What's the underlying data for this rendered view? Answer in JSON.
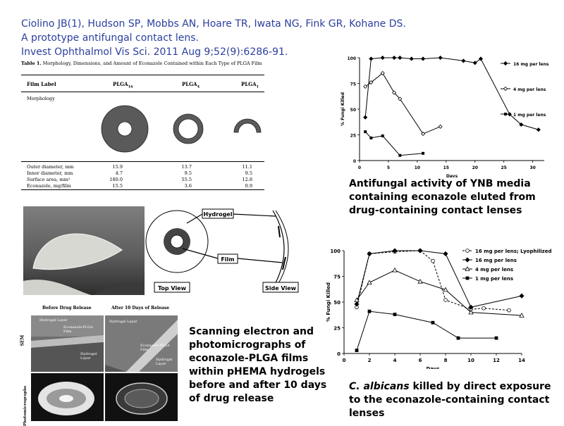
{
  "citation": {
    "authors": "Ciolino JB(1), Hudson SP, Mobbs AN, Hoare TR, Iwata NG, Fink GR, Kohane DS.",
    "title": "A prototype antifungal contact lens.",
    "journal": "Invest Ophthalmol Vis Sci. 2011 Aug 9;52(9):6286-91."
  },
  "table": {
    "caption_label": "Table 1.",
    "caption_text": "Morphology, Dimensions, and Amount of Econazole Contained within Each Type of PLGA Film",
    "col_film_label": "Film Label",
    "col_plga16": "PLGA16",
    "col_plga4": "PLGA4",
    "col_plga1": "PLGA1",
    "row_morphology": "Morphology",
    "rows": [
      {
        "label": "Outer diameter, mm",
        "v": [
          "15.9",
          "13.7",
          "11.1"
        ]
      },
      {
        "label": "Inner diameter, mm",
        "v": [
          "4.7",
          "9.5",
          "9.5"
        ]
      },
      {
        "label": "Surface area, mm²",
        "v": [
          "180.0",
          "55.5",
          "12.8"
        ]
      },
      {
        "label": "Econazole, mg/film",
        "v": [
          "15.5",
          "3.6",
          "0.9"
        ]
      }
    ]
  },
  "chart_top_caption": "Antifungal activity of YNB media containing econazole eluted from drug-containing contact lenses",
  "chart_bottom_caption_italic": "C. albicans",
  "chart_bottom_caption_rest": " killed by direct exposure to the econazole-containing contact lenses",
  "diagram": {
    "hydrogel_label": "Hydrogel",
    "film_label": "Film",
    "top_view_label": "Top View",
    "side_view_label": "Side View"
  },
  "sem": {
    "before_label": "Before Drug Release",
    "after_label": "After 10 Days of Release",
    "row_sem": "SEM",
    "row_photo": "Photomicrographs",
    "inner_hydrogel_layer": "Hydrogel Layer",
    "inner_econazole_film": "Econazole-PLGA Film",
    "inner_hydrogel": "Hydrogel",
    "inner_layer": "Layer",
    "inner_econazole_film2": "Econazole-PLGA Film"
  },
  "sem_caption": "Scanning electron and photomicrographs of econazole-PLGA films within pHEMA hydrogels before and after 10 days of drug release",
  "chart_data": [
    {
      "type": "line",
      "xlabel": "Days",
      "ylabel": "% Fungi Killed",
      "xlim": [
        0,
        32
      ],
      "ylim": [
        0,
        100
      ],
      "xticks": [
        0,
        5,
        10,
        15,
        20,
        25,
        30
      ],
      "yticks": [
        0,
        25,
        50,
        75,
        100
      ],
      "legend_position": "right",
      "series": [
        {
          "name": "16 mg per lens",
          "marker": "diamond",
          "x": [
            1,
            2,
            4,
            6,
            7,
            9,
            11,
            14,
            18,
            20,
            21,
            26,
            28,
            31
          ],
          "y": [
            42,
            99,
            100,
            100,
            100,
            99,
            99,
            100,
            97,
            95,
            99,
            45,
            35,
            30
          ]
        },
        {
          "name": "4 mg per lens",
          "marker": "open-diamond",
          "x": [
            1,
            2,
            4,
            6,
            7,
            11,
            14
          ],
          "y": [
            72,
            76,
            85,
            66,
            60,
            26,
            33
          ]
        },
        {
          "name": "1 mg per lens",
          "marker": "square",
          "x": [
            1,
            2,
            4,
            7,
            11
          ],
          "y": [
            28,
            22,
            24,
            5,
            7
          ]
        }
      ]
    },
    {
      "type": "line",
      "xlabel": "Days",
      "ylabel": "% Fungi Killed",
      "xlim": [
        0,
        14
      ],
      "ylim": [
        0,
        100
      ],
      "xticks": [
        0,
        2,
        4,
        6,
        8,
        10,
        12,
        14
      ],
      "yticks": [
        0,
        25,
        50,
        75,
        100
      ],
      "legend_position": "top-right",
      "series": [
        {
          "name": "16 mg per lens; Lyophilized",
          "marker": "open-circle",
          "x": [
            1,
            2,
            4,
            6,
            7,
            8,
            10,
            11,
            13
          ],
          "y": [
            45,
            97,
            99,
            100,
            90,
            52,
            43,
            44,
            42
          ]
        },
        {
          "name": "16 mg per lens",
          "marker": "diamond",
          "x": [
            1,
            2,
            4,
            6,
            8,
            10,
            14
          ],
          "y": [
            48,
            97,
            100,
            100,
            97,
            45,
            56
          ]
        },
        {
          "name": "4 mg per lens",
          "marker": "open-triangle",
          "x": [
            1,
            2,
            4,
            6,
            8,
            10,
            14
          ],
          "y": [
            52,
            69,
            81,
            70,
            62,
            40,
            37
          ]
        },
        {
          "name": "1 mg per lens",
          "marker": "square",
          "x": [
            1,
            2,
            4,
            7,
            9,
            12
          ],
          "y": [
            3,
            41,
            38,
            30,
            15,
            15
          ]
        }
      ]
    }
  ]
}
